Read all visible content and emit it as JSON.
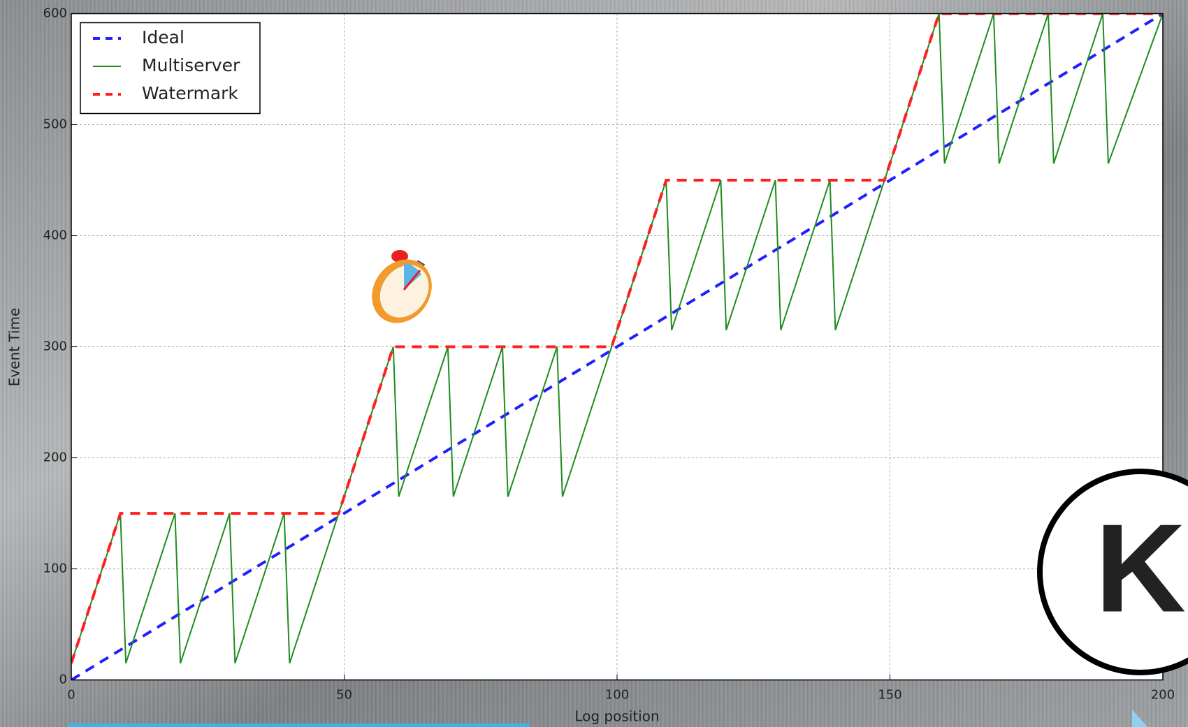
{
  "chart_data": {
    "type": "line",
    "xlabel": "Log position",
    "ylabel": "Event Time",
    "xlim": [
      0,
      200
    ],
    "ylim": [
      0,
      600
    ],
    "xticks": [
      0,
      50,
      100,
      150,
      200
    ],
    "yticks": [
      0,
      100,
      200,
      300,
      400,
      500,
      600
    ],
    "grid": true,
    "legend": "upper left",
    "series": [
      {
        "name": "Ideal",
        "color": "#1f1fff",
        "style": "dashed",
        "x": [
          0,
          200
        ],
        "values": [
          0,
          600
        ]
      },
      {
        "name": "Multiserver",
        "color": "#1e8c1e",
        "style": "solid",
        "x": [
          0,
          9,
          10,
          19,
          20,
          29,
          30,
          39,
          40,
          49,
          59,
          60,
          69,
          70,
          79,
          80,
          89,
          90,
          99,
          109,
          110,
          119,
          120,
          129,
          130,
          139,
          140,
          149,
          159,
          160,
          169,
          170,
          179,
          180,
          189,
          190,
          200
        ],
        "values": [
          15,
          150,
          15,
          150,
          15,
          150,
          15,
          150,
          15,
          150,
          300,
          165,
          300,
          165,
          300,
          165,
          300,
          165,
          300,
          450,
          315,
          450,
          315,
          450,
          315,
          450,
          315,
          450,
          600,
          465,
          600,
          465,
          600,
          465,
          600,
          465,
          600
        ]
      },
      {
        "name": "Watermark",
        "color": "#ff1f1f",
        "style": "dashed",
        "x": [
          0,
          9,
          49,
          59,
          99,
          109,
          149,
          159,
          200
        ],
        "values": [
          15,
          150,
          150,
          300,
          300,
          450,
          450,
          600,
          600
        ]
      }
    ]
  },
  "logo": "K"
}
